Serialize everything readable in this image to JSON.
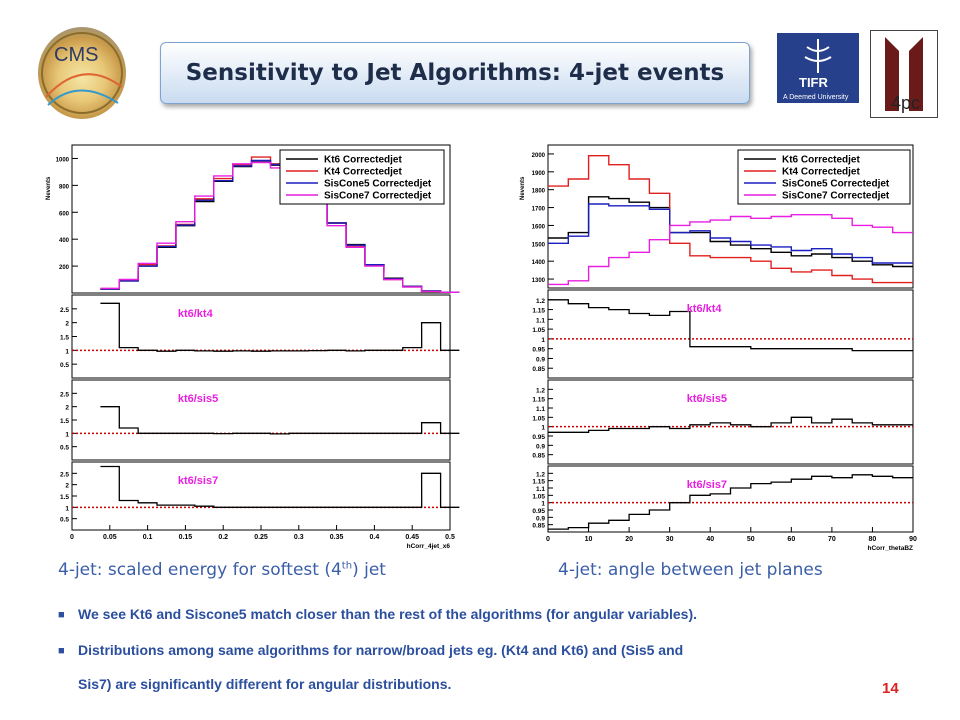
{
  "slide": {
    "title": "Sensitivity to Jet Algorithms: 4-jet events",
    "page_number": "14",
    "logos": {
      "cms": "CMS",
      "tifr": "TIFR",
      "tifr_sub": "A Deemed University",
      "fourpc": "4pc"
    },
    "captions": {
      "left_main": "4-jet: scaled energy for softest (4",
      "left_sup": "th",
      "left_tail": ") jet",
      "right": "4-jet: angle between jet planes"
    },
    "bullets": [
      {
        "text": "We see Kt6 and Siscone5 match closer than the rest of the algorithms (for angular variables)."
      },
      {
        "text": "Distributions among same algorithms for narrow/broad jets eg. (Kt4 and Kt6) and (Sis5 and",
        "cont": "Sis7) are significantly different for angular distributions."
      }
    ]
  },
  "colors": {
    "kt6": "#000000",
    "kt4": "#e0201f",
    "sis5": "#1a1fbf",
    "sis7": "#e81fe0",
    "ratio": "#000000",
    "unity": "#cc0000",
    "accent_text": "#2b4f9e",
    "ratio_label": "#e81fe0"
  },
  "chart_data": [
    {
      "type": "line",
      "title": "",
      "xlabel": "hCorr_4jet_x6",
      "ylabel": "Nevents",
      "xlim": [
        0,
        0.5
      ],
      "ylim": [
        0,
        1100
      ],
      "xticks": [
        "0",
        "0.05",
        "0.1",
        "0.15",
        "0.2",
        "0.25",
        "0.3",
        "0.35",
        "0.4",
        "0.45",
        "0.5"
      ],
      "yticks": [
        "200",
        "400",
        "600",
        "800",
        "1000"
      ],
      "legend": "top-right",
      "x": [
        0.05,
        0.075,
        0.1,
        0.125,
        0.15,
        0.175,
        0.2,
        0.225,
        0.25,
        0.275,
        0.3,
        0.325,
        0.35,
        0.375,
        0.4,
        0.425,
        0.45,
        0.475,
        0.5
      ],
      "series": [
        {
          "name": "Kt6 Correctedjet",
          "values": [
            30,
            90,
            200,
            340,
            500,
            680,
            830,
            940,
            980,
            950,
            850,
            700,
            520,
            360,
            210,
            110,
            50,
            15,
            5
          ]
        },
        {
          "name": "Kt4 Correctedjet",
          "values": [
            30,
            95,
            210,
            350,
            510,
            700,
            850,
            950,
            1010,
            960,
            860,
            700,
            520,
            350,
            210,
            100,
            45,
            12,
            5
          ]
        },
        {
          "name": "SisCone5 Correctedjet",
          "values": [
            30,
            90,
            200,
            345,
            505,
            690,
            835,
            945,
            985,
            955,
            850,
            700,
            520,
            355,
            210,
            105,
            48,
            14,
            5
          ]
        },
        {
          "name": "SisCone7 Correctedjet",
          "values": [
            35,
            100,
            220,
            370,
            530,
            720,
            870,
            960,
            970,
            930,
            830,
            680,
            500,
            340,
            200,
            100,
            45,
            12,
            5
          ]
        }
      ],
      "ratios": [
        {
          "label": "kt6/kt4",
          "ylim": [
            0,
            3
          ],
          "yticks": [
            "0.5",
            "1",
            "1.5",
            "2",
            "2.5"
          ],
          "values": [
            2.7,
            1.1,
            1.0,
            0.97,
            1.0,
            0.98,
            0.97,
            0.98,
            0.97,
            0.98,
            0.98,
            0.99,
            1.0,
            0.98,
            1.0,
            1.0,
            1.1,
            2.0,
            1.0
          ]
        },
        {
          "label": "kt6/sis5",
          "ylim": [
            0,
            3
          ],
          "yticks": [
            "0.5",
            "1",
            "1.5",
            "2",
            "2.5"
          ],
          "values": [
            2.0,
            1.2,
            1.0,
            1.0,
            1.0,
            1.0,
            0.99,
            1.0,
            1.0,
            0.98,
            1.0,
            1.0,
            1.0,
            1.0,
            1.0,
            1.0,
            1.0,
            1.4,
            1.0
          ]
        },
        {
          "label": "kt6/sis7",
          "ylim": [
            0,
            3
          ],
          "yticks": [
            "0.5",
            "1",
            "1.5",
            "2",
            "2.5"
          ],
          "values": [
            2.8,
            1.3,
            1.2,
            1.1,
            1.1,
            1.05,
            1.0,
            1.0,
            1.0,
            1.0,
            1.0,
            1.0,
            1.0,
            1.0,
            1.0,
            1.0,
            1.0,
            2.5,
            1.0
          ]
        }
      ]
    },
    {
      "type": "line",
      "title": "",
      "xlabel": "hCorr_thetaBZ",
      "ylabel": "Nevents",
      "xlim": [
        0,
        90
      ],
      "ylim": [
        1250,
        2050
      ],
      "xticks": [
        "0",
        "10",
        "20",
        "30",
        "40",
        "50",
        "60",
        "70",
        "80",
        "90"
      ],
      "yticks": [
        "1300",
        "1400",
        "1500",
        "1600",
        "1700",
        "1800",
        "1900",
        "2000"
      ],
      "legend": "top-right",
      "x": [
        2.5,
        7.5,
        12.5,
        17.5,
        22.5,
        27.5,
        32.5,
        37.5,
        42.5,
        47.5,
        52.5,
        57.5,
        62.5,
        67.5,
        72.5,
        77.5,
        82.5,
        87.5
      ],
      "series": [
        {
          "name": "Kt6 Correctedjet",
          "values": [
            1530,
            1560,
            1760,
            1750,
            1730,
            1700,
            1560,
            1560,
            1510,
            1490,
            1470,
            1450,
            1430,
            1440,
            1420,
            1400,
            1380,
            1370
          ]
        },
        {
          "name": "Kt4 Correctedjet",
          "values": [
            1820,
            1860,
            1990,
            1940,
            1860,
            1780,
            1500,
            1430,
            1420,
            1420,
            1400,
            1360,
            1340,
            1350,
            1320,
            1300,
            1280,
            1280
          ]
        },
        {
          "name": "SisCone5 Correctedjet",
          "values": [
            1500,
            1540,
            1720,
            1710,
            1710,
            1690,
            1560,
            1570,
            1530,
            1510,
            1490,
            1480,
            1460,
            1470,
            1440,
            1420,
            1390,
            1390
          ]
        },
        {
          "name": "SisCone7 Correctedjet",
          "values": [
            1270,
            1290,
            1370,
            1420,
            1450,
            1520,
            1600,
            1620,
            1630,
            1650,
            1640,
            1650,
            1660,
            1660,
            1640,
            1600,
            1590,
            1560
          ]
        }
      ],
      "ratios": [
        {
          "label": "kt6/kt4",
          "ylim": [
            0.8,
            1.25
          ],
          "yticks": [
            "0.85",
            "0.9",
            "0.95",
            "1",
            "1.05",
            "1.1",
            "1.15",
            "1.2"
          ],
          "values": [
            1.2,
            1.18,
            1.16,
            1.15,
            1.13,
            1.12,
            1.14,
            0.96,
            0.96,
            0.96,
            0.95,
            0.95,
            0.95,
            0.95,
            0.95,
            0.94,
            0.94,
            0.94
          ]
        },
        {
          "label": "kt6/sis5",
          "ylim": [
            0.8,
            1.25
          ],
          "yticks": [
            "0.85",
            "0.9",
            "0.95",
            "1",
            "1.05",
            "1.1",
            "1.15",
            "1.2"
          ],
          "values": [
            0.97,
            0.97,
            0.98,
            0.99,
            0.99,
            1.0,
            0.99,
            1.01,
            1.02,
            1.01,
            1.0,
            1.02,
            1.05,
            1.02,
            1.04,
            1.02,
            1.01,
            1.01
          ]
        },
        {
          "label": "kt6/sis7",
          "ylim": [
            0.8,
            1.25
          ],
          "yticks": [
            "0.85",
            "0.9",
            "0.95",
            "1",
            "1.05",
            "1.1",
            "1.15",
            "1.2"
          ],
          "values": [
            0.82,
            0.83,
            0.86,
            0.88,
            0.92,
            0.95,
            1.0,
            1.05,
            1.06,
            1.1,
            1.13,
            1.14,
            1.16,
            1.18,
            1.17,
            1.19,
            1.18,
            1.17
          ]
        }
      ]
    }
  ]
}
